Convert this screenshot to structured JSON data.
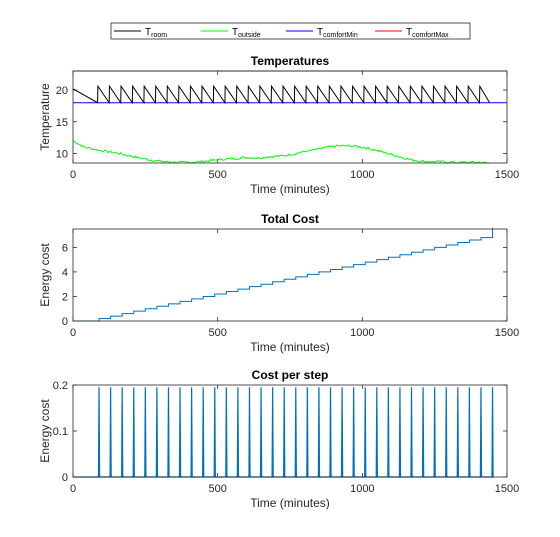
{
  "legend": {
    "items": [
      {
        "base": "T",
        "sub": "room",
        "color": "#000000"
      },
      {
        "base": "T",
        "sub": "outside",
        "color": "#00ff00"
      },
      {
        "base": "T",
        "sub": "comfortMin",
        "color": "#0000ff"
      },
      {
        "base": "T",
        "sub": "comfortMax",
        "color": "#ff0000"
      }
    ]
  },
  "chart_data": [
    {
      "type": "line",
      "title": "Temperatures",
      "xlabel": "Time (minutes)",
      "ylabel": "Temperature",
      "xlim": [
        0,
        1500
      ],
      "ylim": [
        8.5,
        23
      ],
      "xticks": [
        0,
        500,
        1000,
        1500
      ],
      "yticks": [
        10,
        15,
        20
      ],
      "grid": false,
      "legend_position": "top",
      "series": [
        {
          "name": "T_room",
          "color": "#000000",
          "pattern": {
            "start_value": 20.2,
            "initial_drop_end_x": 85,
            "low": 18.0,
            "high": 20.6,
            "period_minutes": 40,
            "end_x": 1440
          }
        },
        {
          "name": "T_outside",
          "color": "#00ff00",
          "x": [
            0,
            40,
            80,
            120,
            160,
            200,
            240,
            280,
            320,
            360,
            400,
            440,
            480,
            520,
            560,
            600,
            640,
            680,
            720,
            760,
            800,
            840,
            880,
            920,
            960,
            1000,
            1040,
            1080,
            1120,
            1160,
            1200,
            1240,
            1280,
            1320,
            1360,
            1400,
            1440
          ],
          "values": [
            12.0,
            11.0,
            10.6,
            10.3,
            10.0,
            9.6,
            9.2,
            8.9,
            8.7,
            8.6,
            8.6,
            8.7,
            8.9,
            9.1,
            9.2,
            9.4,
            9.3,
            9.5,
            9.6,
            9.9,
            10.3,
            10.6,
            11.0,
            11.2,
            11.2,
            11.0,
            10.6,
            10.1,
            9.6,
            9.1,
            8.8,
            8.7,
            8.7,
            8.6,
            8.6,
            8.6,
            8.5
          ]
        },
        {
          "name": "T_comfortMin",
          "color": "#0000ff",
          "x": [
            0,
            1500
          ],
          "values": [
            18,
            18
          ]
        },
        {
          "name": "T_comfortMax",
          "color": "#ff0000",
          "x": [
            0,
            1500
          ],
          "values": [
            23,
            23
          ]
        }
      ]
    },
    {
      "type": "line",
      "title": "Total Cost",
      "xlabel": "Time (minutes)",
      "ylabel": "Energy cost",
      "xlim": [
        0,
        1500
      ],
      "ylim": [
        0,
        7.5
      ],
      "xticks": [
        0,
        500,
        1000,
        1500
      ],
      "yticks": [
        0,
        2,
        4,
        6
      ],
      "grid": false,
      "series": [
        {
          "name": "",
          "color": "#0072bd",
          "pattern": {
            "type": "staircase",
            "first_step_x": 90,
            "period_minutes": 40,
            "step_size": 0.2,
            "step_count": 38,
            "end_x": 1450
          }
        }
      ]
    },
    {
      "type": "line",
      "title": "Cost per step",
      "xlabel": "Time (minutes)",
      "ylabel": "Energy cost",
      "xlim": [
        0,
        1500
      ],
      "ylim": [
        0,
        0.2
      ],
      "xticks": [
        0,
        500,
        1000,
        1500
      ],
      "yticks": [
        0,
        0.1,
        0.2
      ],
      "ytick_labels": [
        "0",
        "0.1",
        "0.2"
      ],
      "grid": false,
      "series": [
        {
          "name": "",
          "color": "#0072bd",
          "pattern": {
            "type": "spikes",
            "first_spike_x": 90,
            "period_minutes": 40,
            "spike_value": 0.195,
            "spike_count": 35,
            "end_x": 1450
          }
        }
      ]
    }
  ]
}
